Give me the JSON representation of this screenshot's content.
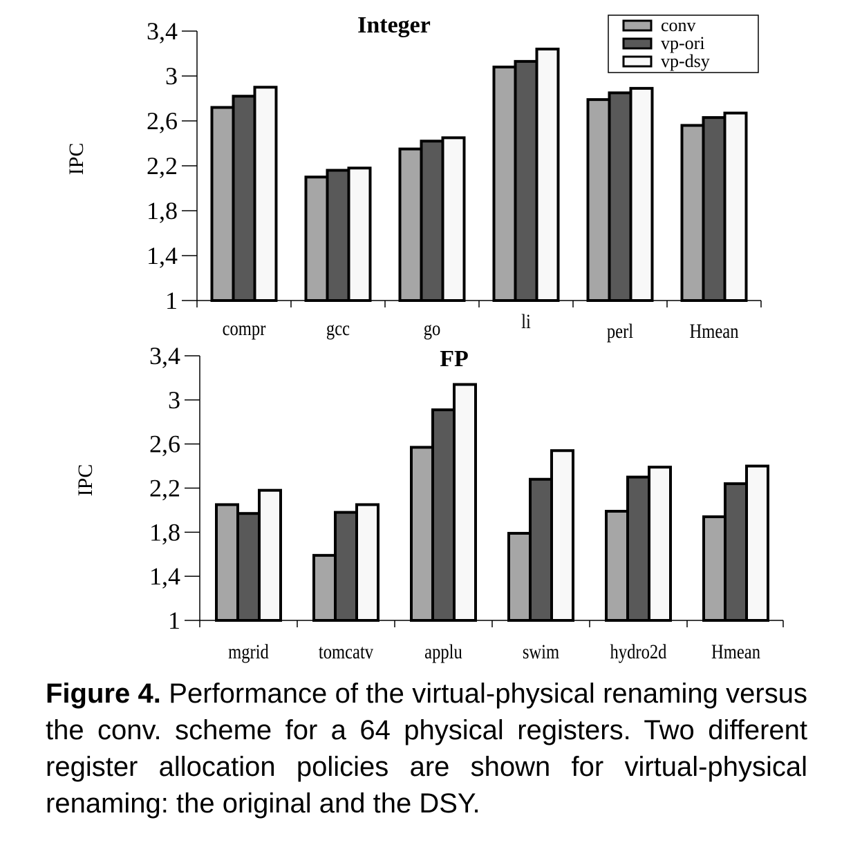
{
  "colors": {
    "conv": "#a6a6a6",
    "vp-ori": "#595959",
    "vp-dsy": "#f8f8f8",
    "outline": "#000000"
  },
  "chart_data": [
    {
      "type": "bar",
      "title": "Integer",
      "ylabel": "IPC",
      "xlabel": "",
      "ylim": [
        1,
        3.4
      ],
      "yticks": [
        "1",
        "1,4",
        "1,8",
        "2,2",
        "2,6",
        "3",
        "3,4"
      ],
      "ytick_values": [
        1,
        1.4,
        1.8,
        2.2,
        2.6,
        3,
        3.4
      ],
      "categories": [
        "compr",
        "gcc",
        "go",
        "li",
        "perl",
        "Hmean"
      ],
      "legend": [
        "conv",
        "vp-ori",
        "vp-dsy"
      ],
      "legend_position": "top-right",
      "series": [
        {
          "name": "conv",
          "values": [
            2.72,
            2.1,
            2.35,
            3.08,
            2.79,
            2.56
          ]
        },
        {
          "name": "vp-ori",
          "values": [
            2.82,
            2.16,
            2.42,
            3.13,
            2.85,
            2.63
          ]
        },
        {
          "name": "vp-dsy",
          "values": [
            2.9,
            2.18,
            2.45,
            3.24,
            2.89,
            2.67
          ]
        }
      ]
    },
    {
      "type": "bar",
      "title": "FP",
      "ylabel": "IPC",
      "xlabel": "",
      "ylim": [
        1,
        3.4
      ],
      "yticks": [
        "1",
        "1,4",
        "1,8",
        "2,2",
        "2,6",
        "3",
        "3,4"
      ],
      "ytick_values": [
        1,
        1.4,
        1.8,
        2.2,
        2.6,
        3,
        3.4
      ],
      "categories": [
        "mgrid",
        "tomcatv",
        "applu",
        "swim",
        "hydro2d",
        "Hmean"
      ],
      "series": [
        {
          "name": "conv",
          "values": [
            2.05,
            1.59,
            2.57,
            1.79,
            1.99,
            1.94
          ]
        },
        {
          "name": "vp-ori",
          "values": [
            1.97,
            1.98,
            2.91,
            2.28,
            2.3,
            2.24
          ]
        },
        {
          "name": "vp-dsy",
          "values": [
            2.18,
            2.05,
            3.14,
            2.54,
            2.39,
            2.4
          ]
        }
      ]
    }
  ],
  "caption": {
    "label": "Figure 4.",
    "text": "Performance of the virtual-physical renaming versus the conv. scheme for a 64 physical registers. Two different register allocation policies are shown for virtual-physical renaming: the original and the DSY."
  }
}
